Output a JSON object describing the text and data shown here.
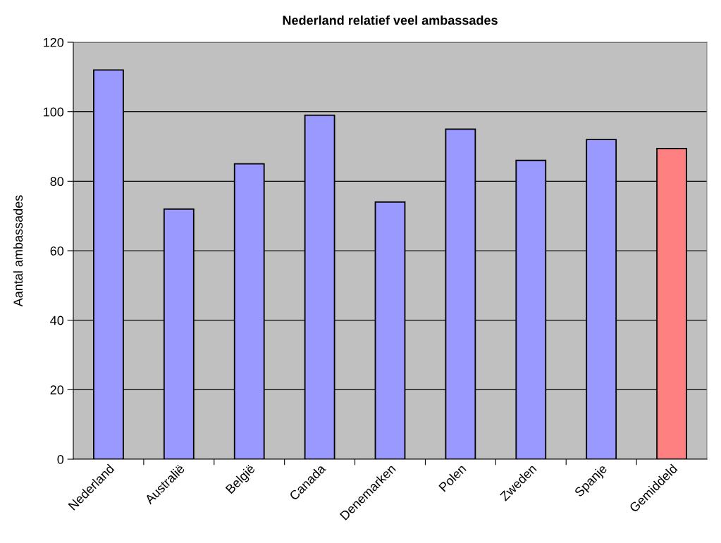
{
  "chart_data": {
    "type": "bar",
    "title": "Nederland relatief veel ambassades",
    "ylabel": "Aantal ambassades",
    "categories": [
      "Nederland",
      "Australië",
      "België",
      "Canada",
      "Denemarken",
      "Polen",
      "Zweden",
      "Spanje",
      "Gemiddeld"
    ],
    "values": [
      112,
      72,
      85,
      99,
      74,
      95,
      86,
      92,
      89.4
    ],
    "colors": [
      "#9999ff",
      "#9999ff",
      "#9999ff",
      "#9999ff",
      "#9999ff",
      "#9999ff",
      "#9999ff",
      "#9999ff",
      "#ff8080"
    ],
    "ylim": [
      0,
      120
    ],
    "yticks": [
      0,
      20,
      40,
      60,
      80,
      100,
      120
    ],
    "grid": "y",
    "legend": false
  }
}
